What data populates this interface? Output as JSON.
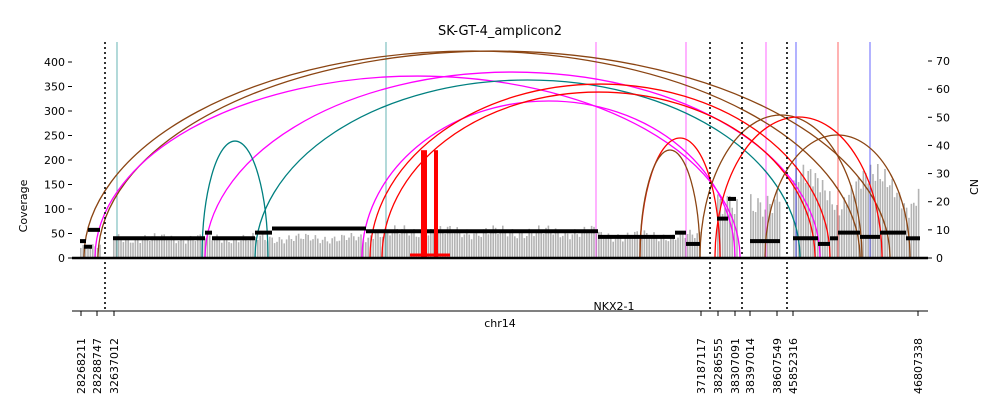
{
  "chart_data": {
    "type": "amplicon-coverage",
    "title": "SK-GT-4_amplicon2",
    "xlabel": "chr14",
    "ylabel_left": "Coverage",
    "ylabel_right": "CN",
    "ylim_left": [
      0,
      440
    ],
    "ylim_right": [
      0,
      76
    ],
    "yticks_left": [
      0,
      50,
      100,
      150,
      200,
      250,
      300,
      350,
      400
    ],
    "yticks_right": [
      0,
      10,
      20,
      30,
      40,
      50,
      60,
      70
    ],
    "gene_label": "NKX2-1",
    "breakpoint_labels": [
      "28268211",
      "28288747",
      "32637012",
      "37187117",
      "38286555",
      "38307091",
      "38397014",
      "38607549",
      "45852316",
      "46807338"
    ],
    "colors": {
      "coverage": "#b3b3b3",
      "cn": "#000000",
      "duplication": "#ff0000",
      "inversion_a": "#ff00ff",
      "inversion_b": "#008080",
      "deletion": "#8b4513",
      "interchrom": "#0000ff"
    }
  }
}
